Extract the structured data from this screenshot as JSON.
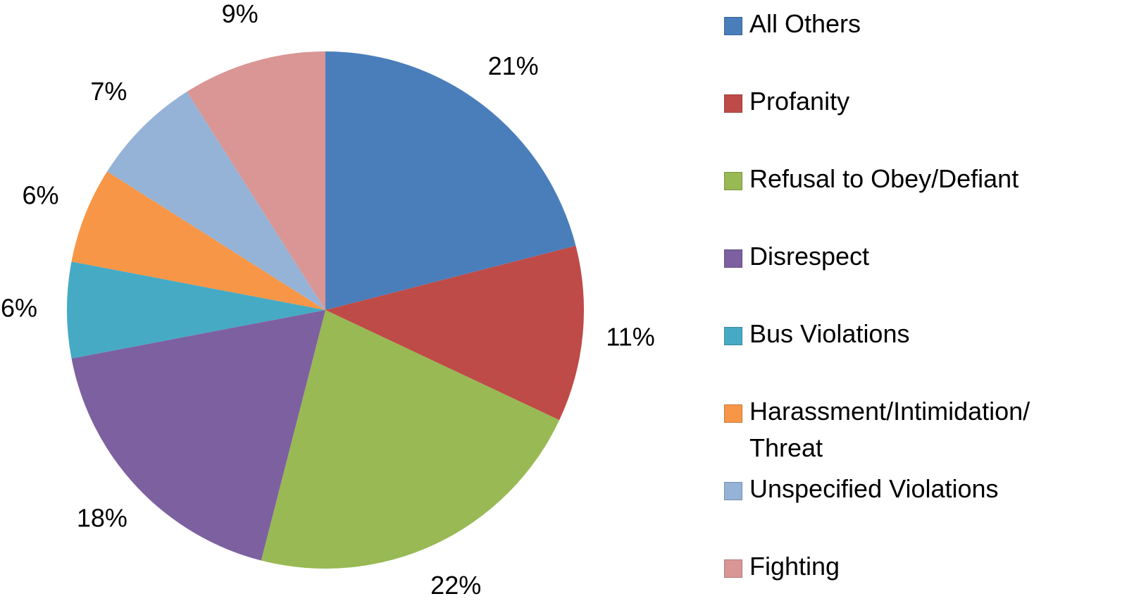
{
  "chart_data": {
    "type": "pie",
    "categories": [
      "All Others",
      "Profanity",
      "Refusal to Obey/Defiant",
      "Disrespect",
      "Bus Violations",
      "Harassment/Intimidation/ Threat",
      "Unspecified Violations",
      "Fighting"
    ],
    "values": [
      21,
      11,
      22,
      18,
      6,
      6,
      7,
      9
    ],
    "value_labels": [
      "21%",
      "11%",
      "22%",
      "18%",
      "6%",
      "6%",
      "7%",
      "9%"
    ],
    "colors": [
      "#4a7ebb",
      "#be4b48",
      "#98b954",
      "#7d60a0",
      "#46aac5",
      "#f79646",
      "#95b3d7",
      "#d99694"
    ],
    "legend": "right"
  }
}
